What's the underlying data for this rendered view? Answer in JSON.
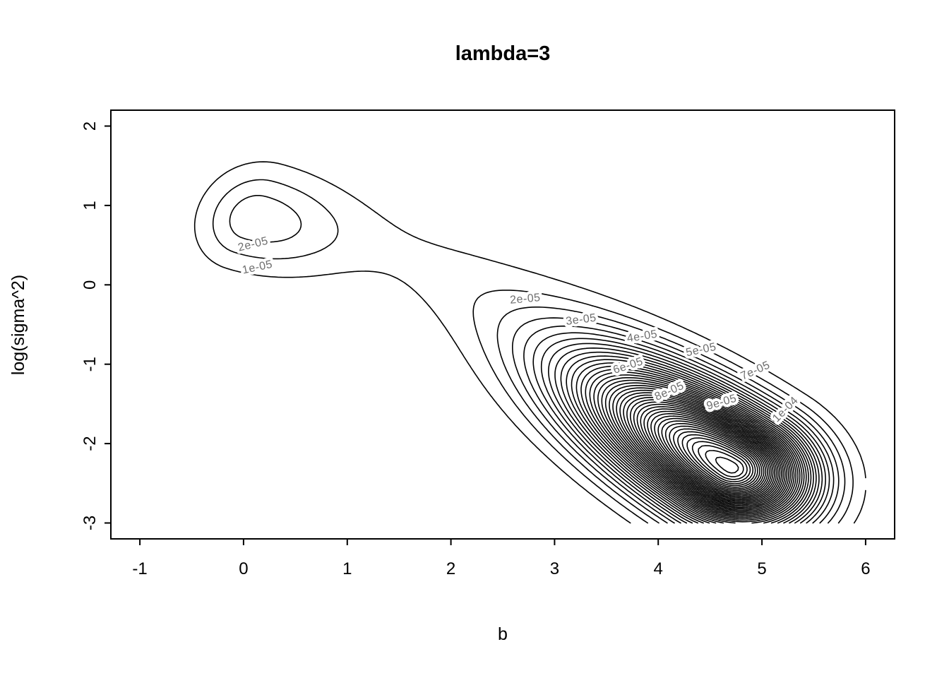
{
  "title": "lambda=3",
  "chart_data": {
    "type": "contour",
    "title": "lambda=3",
    "xlabel": "b",
    "ylabel": "log(sigma^2)",
    "xlim": [
      -1.28,
      6.28
    ],
    "ylim": [
      -3.2,
      2.2
    ],
    "grid_range": {
      "x": [
        -1,
        6
      ],
      "y": [
        -3,
        2
      ]
    },
    "x_ticks": [
      -1,
      0,
      1,
      2,
      3,
      4,
      5,
      6
    ],
    "y_ticks": [
      -3,
      -2,
      -1,
      0,
      1,
      2
    ],
    "grid": false,
    "legend": "none",
    "line_color": "#000000",
    "contour_label_color": "#6e6e6e",
    "background_color": "#ffffff",
    "contour_levels": {
      "start": 1e-05,
      "step": 1e-05,
      "count": 46
    },
    "modes": [
      {
        "b": 0.08,
        "log_sigma2": 0.83,
        "approx_density": 3.6e-05
      },
      {
        "b": 4.7,
        "log_sigma2": -2.3,
        "approx_density": 0.000465
      }
    ],
    "density_components": [
      {
        "amplitude": 3.5e-05,
        "center": [
          0.08,
          0.83
        ],
        "angle_deg": -22,
        "sigma_u_neg": 0.33,
        "sigma_u_pos": 0.62,
        "sigma_v": 0.42
      },
      {
        "amplitude": 0.000465,
        "center": [
          4.7,
          -2.3
        ],
        "angle_deg": -40,
        "sigma_u_neg": 1.15,
        "sigma_u_pos": 0.5,
        "sigma_v": 0.42
      },
      {
        "amplitude": 1.15e-05,
        "center": [
          2.3,
          -0.1
        ],
        "angle_deg": -34,
        "sigma_u_neg": 1.6,
        "sigma_u_pos": 1.6,
        "sigma_v": 0.42
      }
    ],
    "contour_labels": [
      {
        "text": "2e-05",
        "b": 0.1,
        "y": 0.47,
        "rot": -14
      },
      {
        "text": "1e-05",
        "b": 0.14,
        "y": 0.18,
        "rot": -12
      },
      {
        "text": "2e-05",
        "b": 2.72,
        "y": -0.22,
        "rot": -5
      },
      {
        "text": "3e-05",
        "b": 3.26,
        "y": -0.48,
        "rot": -7
      },
      {
        "text": "4e-05",
        "b": 3.85,
        "y": -0.69,
        "rot": -9
      },
      {
        "text": "5e-05",
        "b": 4.42,
        "y": -0.86,
        "rot": -12
      },
      {
        "text": "6e-05",
        "b": 3.72,
        "y": -1.06,
        "rot": -18
      },
      {
        "text": "7e-05",
        "b": 4.95,
        "y": -1.12,
        "rot": -24
      },
      {
        "text": "8e-05",
        "b": 4.12,
        "y": -1.38,
        "rot": -24
      },
      {
        "text": "9e-05",
        "b": 4.62,
        "y": -1.52,
        "rot": -16
      },
      {
        "text": "1e-04",
        "b": 5.25,
        "y": -1.6,
        "rot": -45
      }
    ]
  }
}
